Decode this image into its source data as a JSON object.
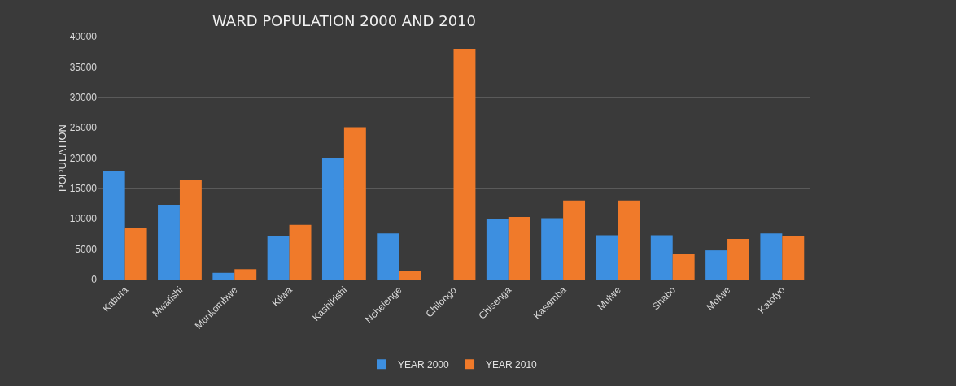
{
  "chart_data": {
    "type": "bar",
    "title": "WARD POPULATION 2000 AND 2010",
    "ylabel": "POPULATION",
    "categories": [
      "Kabuta",
      "Mwatishi",
      "Munkombwe",
      "Kilwa",
      "Kashikishi",
      "Nchelenge",
      "Chilongo",
      "Chisenga",
      "Kasamba",
      "Mulwe",
      "Shabo",
      "Mofwe",
      "Katofyo"
    ],
    "series": [
      {
        "name": "YEAR 2000",
        "color": "#3d8fe0",
        "values": [
          17800,
          12300,
          1100,
          7200,
          20000,
          7600,
          null,
          9900,
          10100,
          7300,
          7300,
          4800,
          7600
        ]
      },
      {
        "name": "YEAR 2010",
        "color": "#f07a2a",
        "values": [
          8500,
          16400,
          1700,
          9000,
          25100,
          1400,
          38000,
          10300,
          13000,
          13000,
          4200,
          6700,
          7100
        ]
      }
    ],
    "ylim": [
      0,
      40000
    ],
    "yticks": [
      0,
      5000,
      10000,
      15000,
      20000,
      25000,
      30000,
      35000,
      40000
    ],
    "grid": "y",
    "legend": "bottom"
  }
}
